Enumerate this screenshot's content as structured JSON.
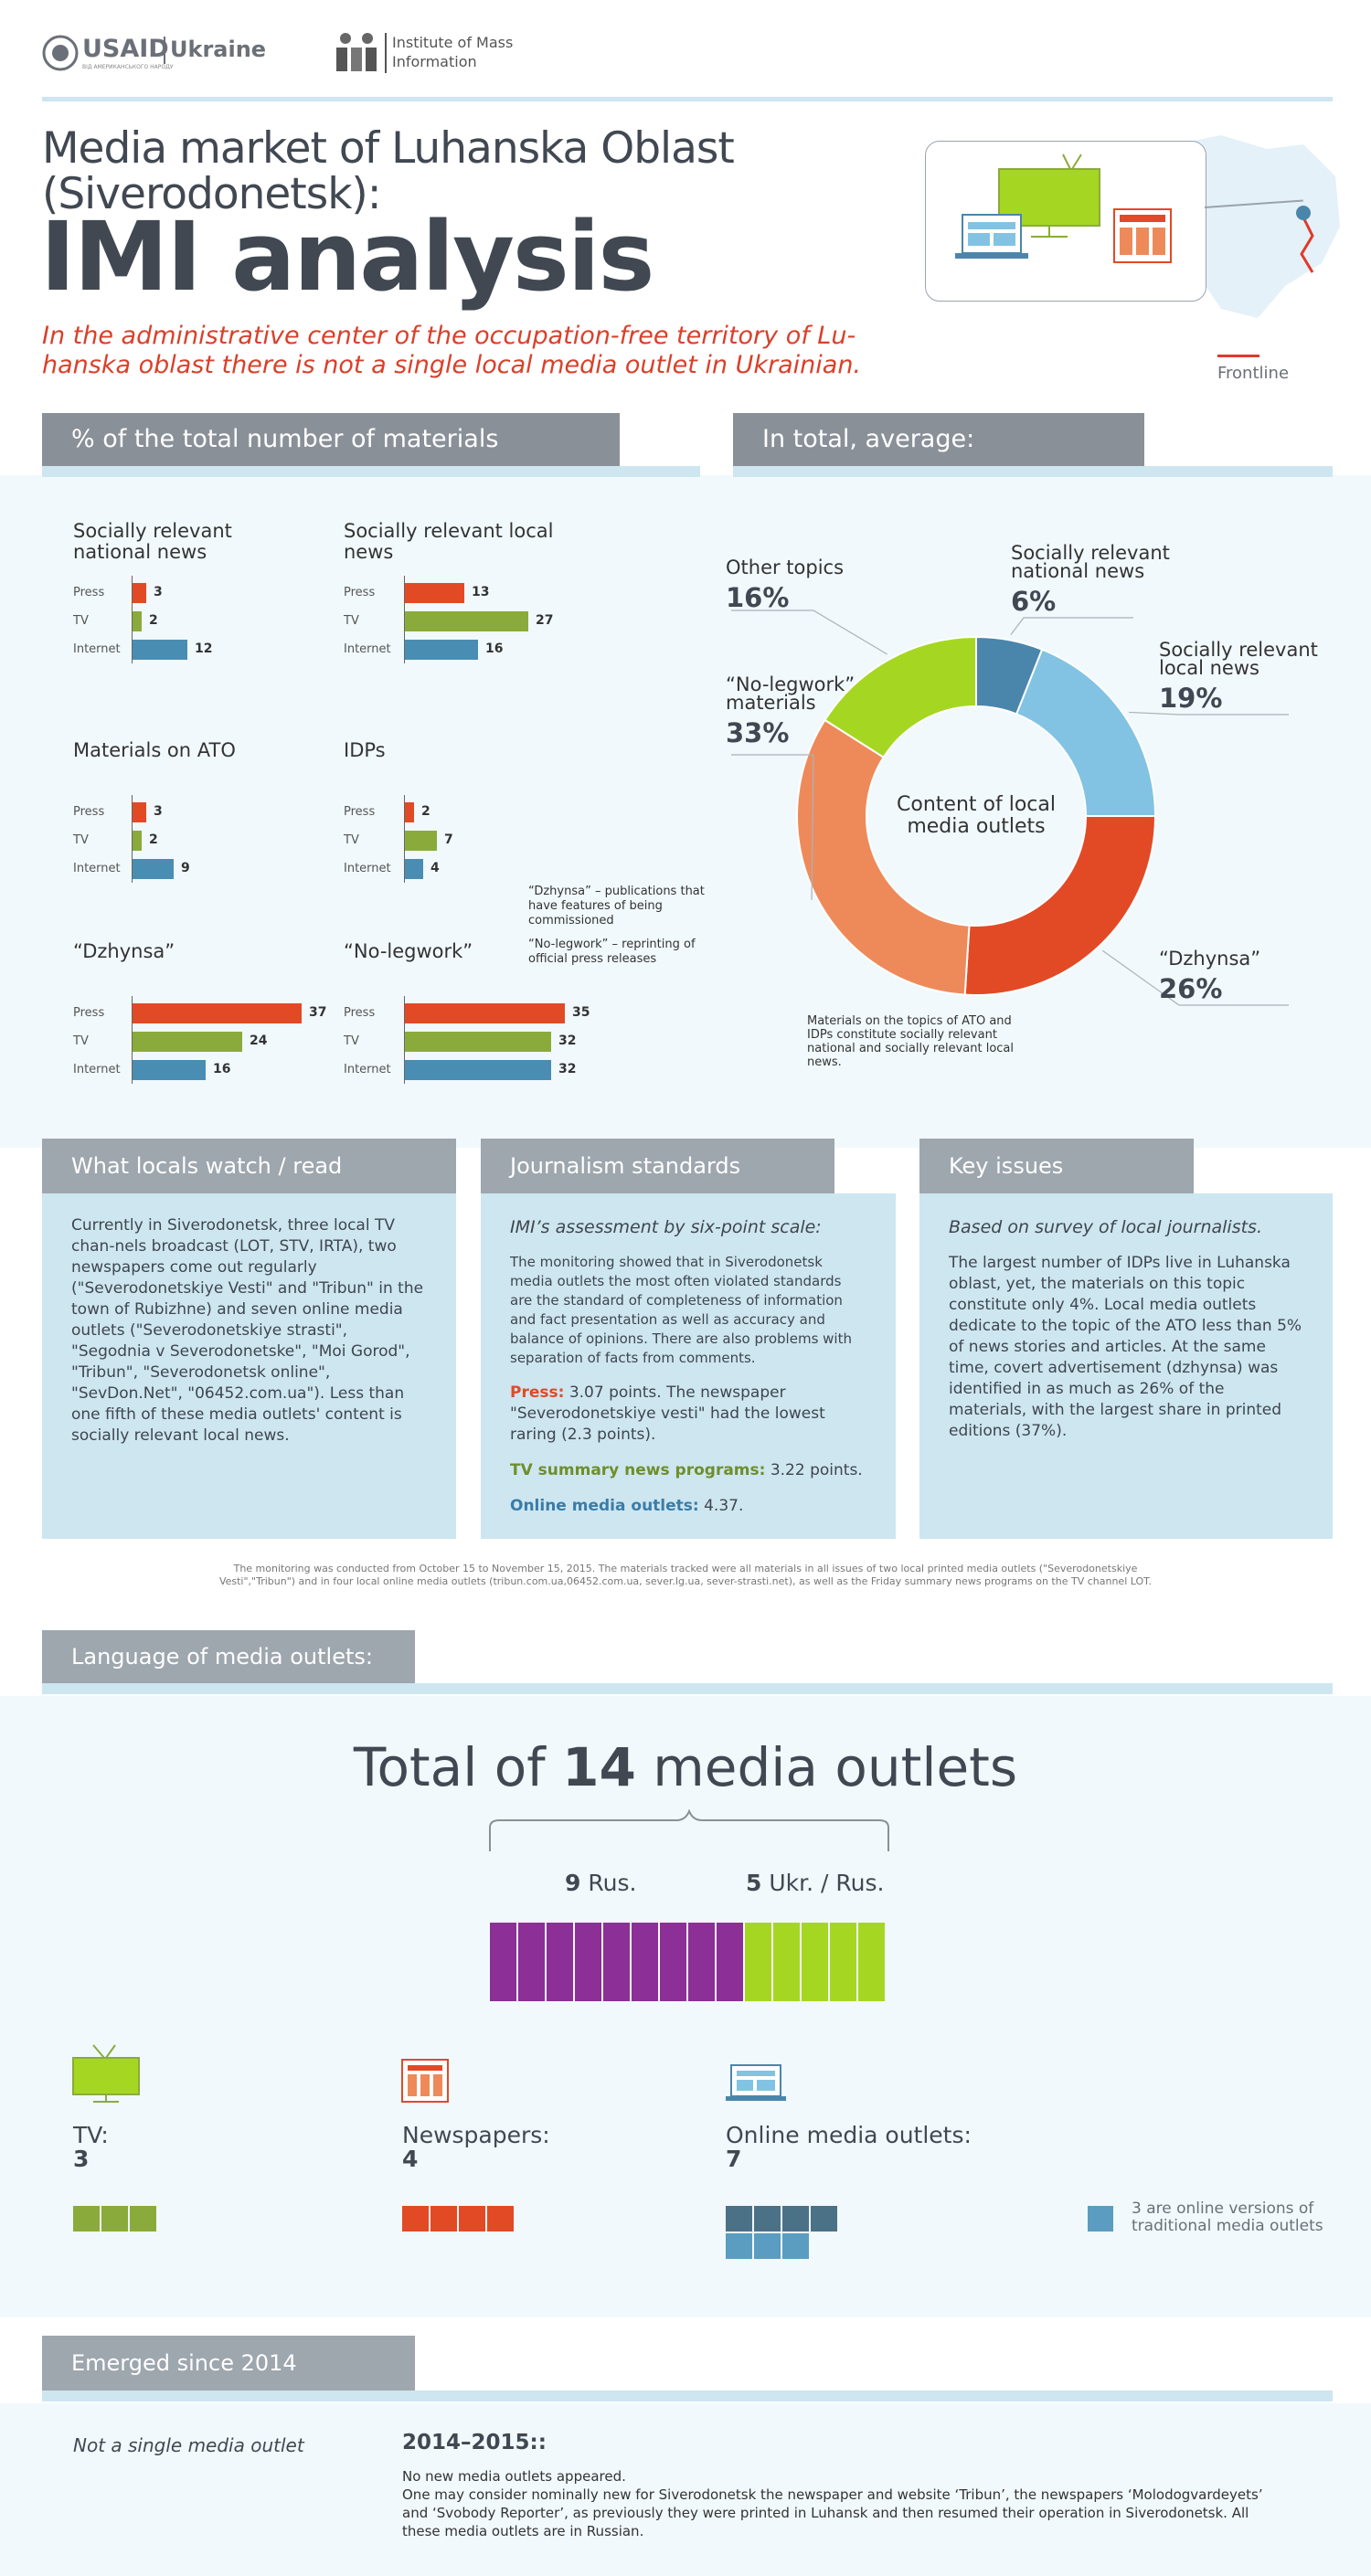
{
  "header": {
    "usaid_logo": "USAID",
    "usaid_tagline": "ВІД АМЕРИКАНСЬКОГО НАРОДУ",
    "ukraine": "Ukraine",
    "imi_line1": "Institute of Mass",
    "imi_line2": "Information"
  },
  "title": {
    "line1": "Media market of Luhanska Oblast",
    "line2": "(Siverodonetsk):",
    "big": "IMI analysis",
    "subtitle_line1": "In the administrative center of the occupation-free territory of Lu-",
    "subtitle_line2": "hanska oblast there is not a single local media outlet in Ukrainian.",
    "frontline_label": "Frontline"
  },
  "colors": {
    "press": "#e24a26",
    "tv": "#8aab3b",
    "internet": "#4a8db3",
    "lime": "#a5d722",
    "purple": "#8c2f96",
    "light_blue": "#82c3e3",
    "steel_blue": "#4a86ab",
    "orange": "#ee8a5a",
    "red": "#e24a26"
  },
  "sections": {
    "materials": "% of the total number of materials",
    "average": "In total, average:",
    "watch": "What locals watch / read",
    "standards": "Journalism standards",
    "issues": "Key issues",
    "language": "Language of media outlets:",
    "emerged": "Emerged since 2014"
  },
  "chart_data": [
    {
      "type": "bar",
      "title": "Socially relevant national news",
      "categories": [
        "Press",
        "TV",
        "Internet"
      ],
      "values": [
        3,
        2,
        12
      ]
    },
    {
      "type": "bar",
      "title": "Socially relevant local news",
      "categories": [
        "Press",
        "TV",
        "Internet"
      ],
      "values": [
        13,
        27,
        16
      ]
    },
    {
      "type": "bar",
      "title": "Materials on ATO",
      "categories": [
        "Press",
        "TV",
        "Internet"
      ],
      "values": [
        3,
        2,
        9
      ]
    },
    {
      "type": "bar",
      "title": "IDPs",
      "categories": [
        "Press",
        "TV",
        "Internet"
      ],
      "values": [
        2,
        7,
        4
      ]
    },
    {
      "type": "bar",
      "title": "“Dzhynsa”",
      "categories": [
        "Press",
        "TV",
        "Internet"
      ],
      "values": [
        37,
        24,
        16
      ]
    },
    {
      "type": "bar",
      "title": "“No-legwork”",
      "categories": [
        "Press",
        "TV",
        "Internet"
      ],
      "values": [
        35,
        32,
        32
      ]
    },
    {
      "type": "pie",
      "title": "Content of local media outlets",
      "slices": [
        {
          "name": "Socially relevant national news",
          "value": 6,
          "label": "6%"
        },
        {
          "name": "Socially relevant local news",
          "value": 19,
          "label": "19%"
        },
        {
          "name": "“Dzhynsa”",
          "value": 26,
          "label": "26%"
        },
        {
          "name": "“No-legwork” materials",
          "value": 33,
          "label": "33%"
        },
        {
          "name": "Other topics",
          "value": 16,
          "label": "16%"
        }
      ]
    }
  ],
  "notes": {
    "dzhynsa_def": "“Dzhynsa” – publications that have features of being commissioned",
    "nolegwork_def": "“No-legwork” – reprinting of official press releases",
    "ato_note": "Materials on the topics of ATO and IDPs constitute socially relevant national and socially relevant local news.",
    "donut_center_line1": "Content of local",
    "donut_center_line2": "media outlets"
  },
  "watch_text": "Currently in Siverodonetsk, three local TV chan-nels  broadcast (LOT, STV, IRTA), two newspapers come out regularly (\"Severodonetskiye Vesti\" and \"Tribun\" in the town of Rubizhne) and seven online media outlets (\"Severodonetskiye strasti\", \"Segodnia v Severodonetske\", \"Moi Gorod\", \"Tribun\", \"Severodonetsk online\", \"SevDon.Net\", \"06452.com.ua\"). Less than one fifth of these media outlets' content is socially relevant local news.",
  "standards": {
    "heading": "IMI’s assessment by six-point scale:",
    "body": "The monitoring showed that in Siverodonetsk media outlets the most often violated standards are the standard of completeness of information and fact presentation as well as accuracy and balance of opinions. There are also problems with separation of facts from comments.",
    "press_label": "Press:",
    "press_text": " 3.07 points. The newspaper \"Severodonetskiye vesti\" had the lowest raring (2.3 points).",
    "tv_label": "TV summary news programs:",
    "tv_text": " 3.22 points.",
    "online_label": "Online media outlets:",
    "online_text": " 4.37."
  },
  "issues": {
    "heading": "Based on survey of local journalists.",
    "body": "The largest number of IDPs live in Luhanska oblast, yet, the materials on this topic constitute only 4%. Local media outlets dedicate to the topic of the ATO less than 5% of news stories and articles. At the same time, covert advertisement (dzhynsa) was identified in as much as 26% of the materials, with the largest share in printed editions (37%)."
  },
  "footnote_line1": "The monitoring was conducted from October 15 to November 15, 2015. The materials tracked were all materials in all issues of two local printed media outlets (\"Severodonetskiye",
  "footnote_line2": "Vesti\",\"Tribun\") and in four local online media outlets (tribun.com.ua,06452.com.ua, sever.lg.ua, sever-strasti.net), as well as the Friday summary news programs on the TV channel LOT.",
  "language": {
    "total_pre": "Total of ",
    "total_num": "14",
    "total_post": " media outlets",
    "rus_num": "9",
    "rus_label": " Rus.",
    "ukr_num": "5",
    "ukr_label": " Ukr. / Rus.",
    "rus_count": 9,
    "ukr_count": 5
  },
  "types": {
    "tv_label": "TV:",
    "tv_count": "3",
    "news_label": "Newspapers:",
    "news_count": "4",
    "online_label": "Online media outlets:",
    "online_count": "7",
    "online_versions_line1": "3 are online versions of",
    "online_versions_line2": "traditional media outlets"
  },
  "emerged": {
    "left": "Not a single media outlet",
    "period": "2014–2015::",
    "line1": "No new media outlets appeared.",
    "line2": "One may consider nominally new for Siverodonetsk the newspaper and website ‘Tribun’, the newspapers ‘Molodogvardeyets’ and ‘Svobody Reporter’, as previously they were printed in Luhansk and then resumed their operation in Siverodonetsk. All these media outlets are in Russian."
  }
}
